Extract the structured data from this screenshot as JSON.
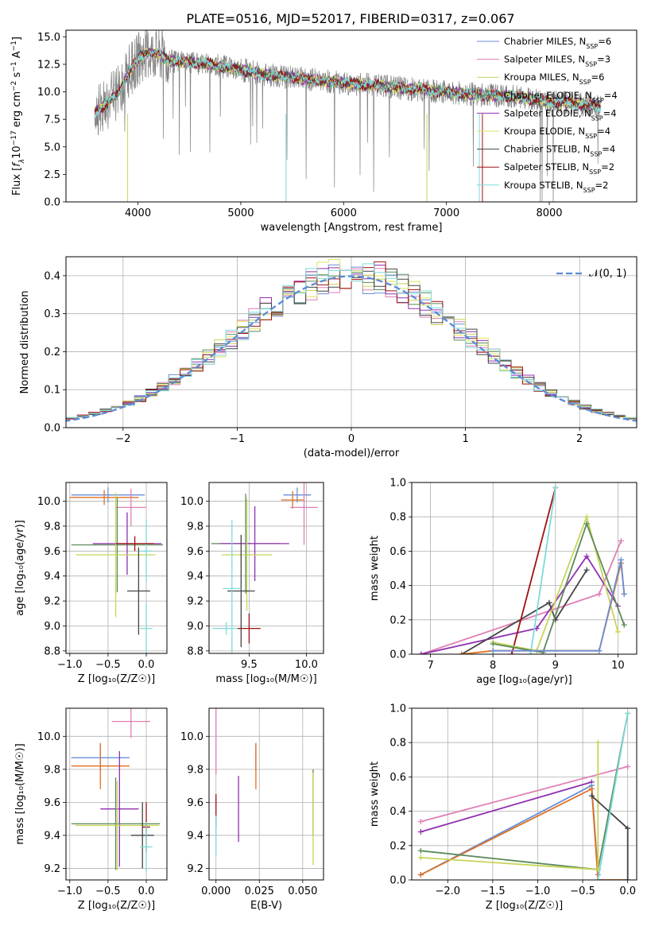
{
  "figure": {
    "title": "PLATE=0516, MJD=52017, FIBERID=0317, z=0.067"
  },
  "colors": {
    "chabrier_miles": "#6a8fd8",
    "salpeter_miles": "#e07fb5",
    "kroupa_miles": "#c8d45a",
    "chabrier_elodie": "#5a8a5a",
    "salpeter_elodie": "#9030b0",
    "kroupa_elodie": "#e0e060",
    "chabrier_stelib": "#444444",
    "salpeter_stelib": "#a01010",
    "kroupa_stelib": "#7fdada",
    "data_spectrum": "#808080",
    "normal_curve": "#5b8bd8",
    "orange": "#e07020"
  },
  "chart_data": [
    {
      "id": "spectrum",
      "type": "line",
      "xlabel": "wavelength [Angstrom, rest frame]",
      "ylabel_parts": [
        "Flux [",
        "f",
        "λ",
        "10",
        "−17",
        " erg cm",
        "−2",
        " s",
        "−1",
        " A",
        "−1",
        "]"
      ],
      "xlim": [
        3300,
        8850
      ],
      "ylim": [
        0,
        15.6
      ],
      "xticks": [
        4000,
        5000,
        6000,
        7000,
        8000
      ],
      "yticks": [
        0.0,
        2.5,
        5.0,
        7.5,
        10.0,
        12.5,
        15.0
      ],
      "ytick_labels": [
        "0.0",
        "2.5",
        "5.0",
        "7.5",
        "10.0",
        "12.5",
        "15.0"
      ],
      "legend": [
        {
          "label": "Chabrier MILES, N",
          "sub": "SSP",
          "tail": "=6",
          "color_key": "chabrier_miles"
        },
        {
          "label": "Salpeter MILES, N",
          "sub": "SSP",
          "tail": "=3",
          "color_key": "salpeter_miles"
        },
        {
          "label": "Kroupa MILES, N",
          "sub": "SSP",
          "tail": "=6",
          "color_key": "kroupa_miles"
        },
        {
          "label": "Chabrier ELODIE, N",
          "sub": "SSP",
          "tail": "=4",
          "color_key": "chabrier_elodie"
        },
        {
          "label": "Salpeter ELODIE, N",
          "sub": "SSP",
          "tail": "=4",
          "color_key": "salpeter_elodie"
        },
        {
          "label": "Kroupa ELODIE, N",
          "sub": "SSP",
          "tail": "=4",
          "color_key": "kroupa_elodie"
        },
        {
          "label": "Chabrier STELIB, N",
          "sub": "SSP",
          "tail": "=4",
          "color_key": "chabrier_stelib"
        },
        {
          "label": "Salpeter STELIB, N",
          "sub": "SSP",
          "tail": "=2",
          "color_key": "salpeter_stelib"
        },
        {
          "label": "Kroupa STELIB, N",
          "sub": "SSP",
          "tail": "=2",
          "color_key": "kroupa_stelib"
        }
      ],
      "data_range": [
        3580,
        8500
      ],
      "model_shape": {
        "x": [
          3580,
          3700,
          3800,
          3900,
          4000,
          4100,
          4200,
          4300,
          4500,
          4700,
          5000,
          5200,
          5500,
          5800,
          6000,
          6300,
          6600,
          7000,
          7200,
          7400,
          7600,
          7800,
          8000,
          8200,
          8500
        ],
        "y": [
          8.2,
          9.0,
          9.8,
          11.6,
          13.0,
          13.6,
          13.5,
          12.8,
          12.7,
          12.5,
          12.0,
          11.6,
          11.3,
          11.0,
          10.8,
          10.6,
          10.3,
          10.0,
          9.8,
          9.7,
          9.6,
          9.4,
          9.1,
          9.0,
          8.7
        ]
      }
    },
    {
      "id": "residuals",
      "type": "histogram",
      "xlabel": "(data-model)/error",
      "ylabel": "Normed distribution",
      "xlim": [
        -2.5,
        2.5
      ],
      "ylim": [
        0,
        0.45
      ],
      "xticks": [
        -2,
        -1,
        0,
        1,
        2
      ],
      "xtick_labels": [
        "−2",
        "−1",
        "0",
        "1",
        "2"
      ],
      "yticks": [
        0.0,
        0.1,
        0.2,
        0.3,
        0.4
      ],
      "ytick_labels": [
        "0.0",
        "0.1",
        "0.2",
        "0.3",
        "0.4"
      ],
      "bin_width": 0.1,
      "legend_label": "𝒩(0, 1)"
    },
    {
      "id": "age_vs_Z",
      "type": "scatter",
      "xlabel": "Z [log₁₀(Z/Z☉)]",
      "ylabel": "age  [log₁₀(age/yr)]",
      "xlim": [
        -1.05,
        0.27
      ],
      "ylim": [
        8.78,
        10.15
      ],
      "xticks": [
        -1.0,
        -0.5,
        0.0
      ],
      "xtick_labels": [
        "−1.0",
        "−0.5",
        "0.0"
      ],
      "yticks": [
        8.8,
        9.0,
        9.2,
        9.4,
        9.6,
        9.8,
        10.0
      ],
      "ytick_labels": [
        "8.8",
        "9.0",
        "9.2",
        "9.4",
        "9.6",
        "9.8",
        "10.0"
      ],
      "points": [
        {
          "x": -0.5,
          "xerr": 0.48,
          "y": 10.05,
          "yerr": 0.06,
          "color_key": "chabrier_miles"
        },
        {
          "x": -0.55,
          "xerr": 0.45,
          "y": 10.03,
          "yerr": 0.06,
          "color_key": "orange"
        },
        {
          "x": -0.2,
          "xerr": 0.2,
          "y": 9.95,
          "yerr": 0.15,
          "color_key": "salpeter_miles"
        },
        {
          "x": -0.38,
          "xerr": 0.6,
          "y": 9.65,
          "yerr": 0.38,
          "color_key": "chabrier_elodie"
        },
        {
          "x": -0.25,
          "xerr": 0.45,
          "y": 9.66,
          "yerr": 0.25,
          "color_key": "salpeter_elodie"
        },
        {
          "x": -0.4,
          "xerr": 0.52,
          "y": 9.57,
          "yerr": 0.5,
          "color_key": "kroupa_miles"
        },
        {
          "x": -0.1,
          "xerr": 0.15,
          "y": 9.28,
          "yerr": 0.35,
          "color_key": "chabrier_stelib"
        },
        {
          "x": 0.0,
          "xerr": 0.08,
          "y": 9.6,
          "yerr": 0.25,
          "color_key": "kroupa_stelib"
        },
        {
          "x": 0.0,
          "xerr": 0.08,
          "y": 8.98,
          "yerr": 0.2,
          "color_key": "kroupa_stelib"
        },
        {
          "x": -0.15,
          "xerr": 0.25,
          "y": 9.66,
          "yerr": 0.06,
          "color_key": "salpeter_stelib"
        }
      ]
    },
    {
      "id": "age_vs_mass",
      "type": "scatter",
      "xlabel": "mass [log₁₀(M/M☉)]",
      "xlim": [
        9.15,
        10.15
      ],
      "ylim": [
        8.78,
        10.15
      ],
      "xticks": [
        9.5,
        10.0
      ],
      "xtick_labels": [
        "9.5",
        "10.0"
      ],
      "yticks": [
        8.8,
        9.0,
        9.2,
        9.4,
        9.6,
        9.8,
        10.0
      ],
      "ytick_labels": [
        "8.8",
        "9.0",
        "9.2",
        "9.4",
        "9.6",
        "9.8",
        "10.0"
      ],
      "points": [
        {
          "x": 9.92,
          "xerr": 0.12,
          "y": 10.05,
          "yerr": 0.06,
          "color_key": "chabrier_miles"
        },
        {
          "x": 9.88,
          "xerr": 0.1,
          "y": 10.01,
          "yerr": 0.07,
          "color_key": "orange"
        },
        {
          "x": 9.98,
          "xerr": 0.12,
          "y": 9.95,
          "yerr": 0.3,
          "color_key": "salpeter_miles"
        },
        {
          "x": 9.47,
          "xerr": 0.3,
          "y": 9.66,
          "yerr": 0.4,
          "color_key": "chabrier_elodie"
        },
        {
          "x": 9.55,
          "xerr": 0.3,
          "y": 9.66,
          "yerr": 0.3,
          "color_key": "salpeter_elodie"
        },
        {
          "x": 9.48,
          "xerr": 0.22,
          "y": 9.57,
          "yerr": 0.45,
          "color_key": "kroupa_miles"
        },
        {
          "x": 9.43,
          "xerr": 0.12,
          "y": 9.28,
          "yerr": 0.45,
          "color_key": "chabrier_stelib"
        },
        {
          "x": 9.35,
          "xerr": 0.08,
          "y": 9.3,
          "yerr": 0.55,
          "color_key": "kroupa_stelib"
        },
        {
          "x": 9.3,
          "xerr": 0.12,
          "y": 8.98,
          "yerr": 0.05,
          "color_key": "kroupa_stelib"
        },
        {
          "x": 9.5,
          "xerr": 0.1,
          "y": 8.98,
          "yerr": 0.12,
          "color_key": "salpeter_stelib"
        }
      ]
    },
    {
      "id": "weight_vs_age",
      "type": "line",
      "xlabel": "age  [log₁₀(age/yr)]",
      "ylabel": "mass weight",
      "xlim": [
        6.7,
        10.3
      ],
      "ylim": [
        0,
        1.0
      ],
      "xticks": [
        7,
        8,
        9,
        10
      ],
      "xtick_labels": [
        "7",
        "8",
        "9",
        "10"
      ],
      "yticks": [
        0.0,
        0.2,
        0.4,
        0.6,
        0.8,
        1.0
      ],
      "ytick_labels": [
        "0.0",
        "0.2",
        "0.4",
        "0.6",
        "0.8",
        "1.0"
      ],
      "series": [
        {
          "color_key": "salpeter_miles",
          "x": [
            6.85,
            9.7,
            10.05
          ],
          "y": [
            0.0,
            0.35,
            0.66
          ]
        },
        {
          "color_key": "salpeter_elodie",
          "x": [
            6.85,
            8.7,
            9.5,
            10.0
          ],
          "y": [
            0.0,
            0.15,
            0.57,
            0.28
          ]
        },
        {
          "color_key": "chabrier_stelib",
          "x": [
            7.5,
            8.9,
            9.0,
            9.5
          ],
          "y": [
            0.0,
            0.3,
            0.2,
            0.49
          ]
        },
        {
          "color_key": "salpeter_stelib",
          "x": [
            8.3,
            9.0
          ],
          "y": [
            0.0,
            0.97
          ]
        },
        {
          "color_key": "kroupa_stelib",
          "x": [
            8.6,
            9.0
          ],
          "y": [
            0.0,
            0.97
          ]
        },
        {
          "color_key": "kroupa_miles",
          "x": [
            8.0,
            8.7,
            9.5,
            10.0
          ],
          "y": [
            0.07,
            0.02,
            0.8,
            0.13
          ]
        },
        {
          "color_key": "chabrier_elodie",
          "x": [
            8.0,
            8.8,
            9.5,
            10.1
          ],
          "y": [
            0.06,
            0.01,
            0.76,
            0.17
          ]
        },
        {
          "color_key": "orange",
          "x": [
            7.5,
            8.0,
            9.7,
            10.05,
            10.1
          ],
          "y": [
            0.0,
            0.02,
            0.02,
            0.53,
            0.35
          ]
        },
        {
          "color_key": "chabrier_miles",
          "x": [
            8.0,
            9.7,
            10.05,
            10.1
          ],
          "y": [
            0.02,
            0.02,
            0.55,
            0.35
          ]
        }
      ]
    },
    {
      "id": "mass_vs_Z",
      "type": "scatter",
      "xlabel": "Z [log₁₀(Z/Z☉)]",
      "ylabel": "mass [log₁₀(M/M☉)]",
      "xlim": [
        -1.05,
        0.27
      ],
      "ylim": [
        9.13,
        10.17
      ],
      "xticks": [
        -1.0,
        -0.5,
        0.0
      ],
      "xtick_labels": [
        "−1.0",
        "−0.5",
        "0.0"
      ],
      "yticks": [
        9.2,
        9.4,
        9.6,
        9.8,
        10.0
      ],
      "ytick_labels": [
        "9.2",
        "9.4",
        "9.6",
        "9.8",
        "10.0"
      ],
      "points": [
        {
          "x": -0.2,
          "xerr": 0.25,
          "y": 10.09,
          "yerr": 0.1,
          "color_key": "salpeter_miles"
        },
        {
          "x": -0.6,
          "xerr": 0.38,
          "y": 9.87,
          "yerr": 0.08,
          "color_key": "chabrier_miles"
        },
        {
          "x": -0.6,
          "xerr": 0.38,
          "y": 9.82,
          "yerr": 0.14,
          "color_key": "orange"
        },
        {
          "x": -0.35,
          "xerr": 0.25,
          "y": 9.56,
          "yerr": 0.35,
          "color_key": "salpeter_elodie"
        },
        {
          "x": -0.4,
          "xerr": 0.58,
          "y": 9.47,
          "yerr": 0.28,
          "color_key": "chabrier_elodie"
        },
        {
          "x": -0.38,
          "xerr": 0.55,
          "y": 9.46,
          "yerr": 0.27,
          "color_key": "kroupa_miles"
        },
        {
          "x": -0.05,
          "xerr": 0.15,
          "y": 9.4,
          "yerr": 0.2,
          "color_key": "chabrier_stelib"
        },
        {
          "x": 0.0,
          "xerr": 0.05,
          "y": 9.45,
          "yerr": 0.15,
          "color_key": "salpeter_stelib"
        },
        {
          "x": 0.0,
          "xerr": 0.08,
          "y": 9.33,
          "yerr": 0.15,
          "color_key": "kroupa_stelib"
        }
      ]
    },
    {
      "id": "mass_vs_ebv",
      "type": "scatter",
      "xlabel": "E(B-V)",
      "xlim": [
        -0.004,
        0.062
      ],
      "ylim": [
        9.13,
        10.17
      ],
      "xticks": [
        0.0,
        0.025,
        0.05
      ],
      "xtick_labels": [
        "0.000",
        "0.025",
        "0.050"
      ],
      "yticks": [
        9.2,
        9.4,
        9.6,
        9.8,
        10.0
      ],
      "ytick_labels": [
        "9.2",
        "9.4",
        "9.6",
        "9.8",
        "10.0"
      ],
      "points": [
        {
          "x": 0.0,
          "y": 9.97,
          "yerr": 0.2,
          "color_key": "salpeter_miles"
        },
        {
          "x": 0.0,
          "y": 9.55,
          "yerr": 0.1,
          "color_key": "salpeter_stelib"
        },
        {
          "x": 0.0,
          "y": 9.4,
          "yerr": 0.12,
          "color_key": "kroupa_stelib"
        },
        {
          "x": 0.013,
          "y": 9.56,
          "yerr": 0.2,
          "color_key": "salpeter_elodie"
        },
        {
          "x": 0.023,
          "y": 9.87,
          "yerr": 0.08,
          "color_key": "chabrier_miles"
        },
        {
          "x": 0.023,
          "y": 9.82,
          "yerr": 0.14,
          "color_key": "orange"
        },
        {
          "x": 0.056,
          "y": 9.6,
          "yerr": 0.2,
          "color_key": "chabrier_elodie"
        },
        {
          "x": 0.056,
          "y": 9.5,
          "yerr": 0.28,
          "color_key": "kroupa_miles"
        }
      ]
    },
    {
      "id": "weight_vs_Z",
      "type": "line",
      "xlabel": "Z [log₁₀(Z/Z☉)]",
      "ylabel": "mass weight",
      "xlim": [
        -2.4,
        0.1
      ],
      "ylim": [
        0,
        1.0
      ],
      "xticks": [
        -2.0,
        -1.5,
        -1.0,
        -0.5,
        0.0
      ],
      "xtick_labels": [
        "−2.0",
        "−1.5",
        "−1.0",
        "−0.5",
        "0.0"
      ],
      "yticks": [
        0.0,
        0.2,
        0.4,
        0.6,
        0.8,
        1.0
      ],
      "ytick_labels": [
        "0.0",
        "0.2",
        "0.4",
        "0.6",
        "0.8",
        "1.0"
      ],
      "series": [
        {
          "color_key": "salpeter_miles",
          "x": [
            -2.3,
            0.0
          ],
          "y": [
            0.34,
            0.66
          ]
        },
        {
          "color_key": "salpeter_elodie",
          "x": [
            -2.3,
            -0.4
          ],
          "y": [
            0.28,
            0.57
          ]
        },
        {
          "color_key": "chabrier_miles",
          "x": [
            -2.3,
            -0.4,
            -0.33
          ],
          "y": [
            0.03,
            0.55,
            0.03
          ]
        },
        {
          "color_key": "orange",
          "x": [
            -2.3,
            -0.4,
            -0.33,
            0.0
          ],
          "y": [
            0.03,
            0.53,
            0.0,
            0.0
          ]
        },
        {
          "color_key": "chabrier_elodie",
          "x": [
            -2.3,
            -0.33,
            0.0
          ],
          "y": [
            0.17,
            0.06,
            0.97
          ]
        },
        {
          "color_key": "kroupa_miles",
          "x": [
            -2.3,
            -0.33,
            -0.33
          ],
          "y": [
            0.13,
            0.06,
            0.8
          ]
        },
        {
          "color_key": "chabrier_stelib",
          "x": [
            -0.4,
            0.0,
            0.0
          ],
          "y": [
            0.49,
            0.3,
            0.0
          ]
        },
        {
          "color_key": "kroupa_stelib",
          "x": [
            -0.33,
            0.0
          ],
          "y": [
            0.0,
            0.97
          ]
        }
      ]
    }
  ]
}
